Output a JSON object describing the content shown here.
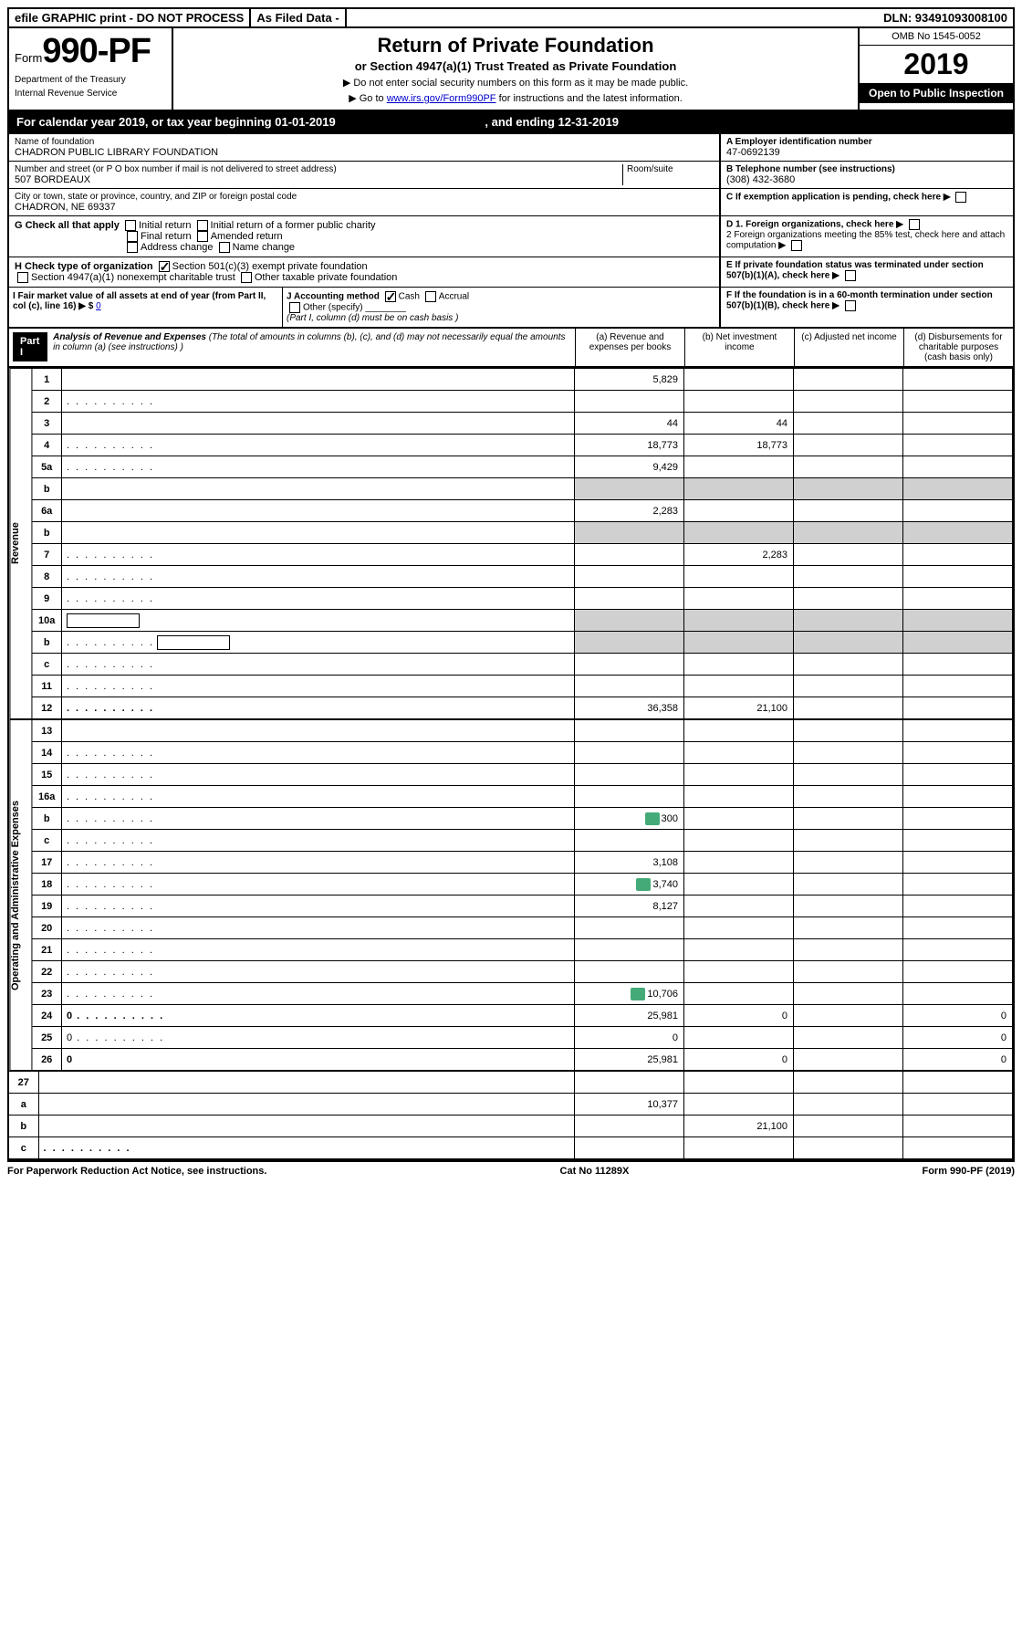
{
  "topbar": {
    "efile": "efile GRAPHIC print - DO NOT PROCESS",
    "asfiled": "As Filed Data -",
    "dln": "DLN: 93491093008100"
  },
  "formbox": {
    "form_label": "Form",
    "form_num": "990-PF",
    "dept1": "Department of the Treasury",
    "dept2": "Internal Revenue Service"
  },
  "titlebox": {
    "title": "Return of Private Foundation",
    "sub": "or Section 4947(a)(1) Trust Treated as Private Foundation",
    "note1": "▶ Do not enter social security numbers on this form as it may be made public.",
    "note2_pre": "▶ Go to ",
    "note2_link": "www.irs.gov/Form990PF",
    "note2_post": " for instructions and the latest information."
  },
  "yearbox": {
    "omb": "OMB No 1545-0052",
    "year": "2019",
    "open": "Open to Public Inspection"
  },
  "calyear": {
    "text_pre": "For calendar year 2019, or tax year beginning ",
    "begin": "01-01-2019",
    "text_mid": ", and ending ",
    "end": "12-31-2019"
  },
  "name": {
    "label": "Name of foundation",
    "value": "CHADRON PUBLIC LIBRARY FOUNDATION"
  },
  "ein": {
    "label": "A Employer identification number",
    "value": "47-0692139"
  },
  "addr": {
    "label": "Number and street (or P O  box number if mail is not delivered to street address)",
    "room": "Room/suite",
    "value": "507 BORDEAUX"
  },
  "tel": {
    "label": "B Telephone number (see instructions)",
    "value": "(308) 432-3680"
  },
  "city": {
    "label": "City or town, state or province, country, and ZIP or foreign postal code",
    "value": "CHADRON, NE  69337"
  },
  "c_label": "C If exemption application is pending, check here",
  "g": {
    "label": "G Check all that apply",
    "opts": [
      "Initial return",
      "Initial return of a former public charity",
      "Final return",
      "Amended return",
      "Address change",
      "Name change"
    ]
  },
  "d": {
    "d1": "D 1. Foreign organizations, check here",
    "d2": "2 Foreign organizations meeting the 85% test, check here and attach computation"
  },
  "h": {
    "label": "H Check type of organization",
    "opt1": "Section 501(c)(3) exempt private foundation",
    "opt2": "Section 4947(a)(1) nonexempt charitable trust",
    "opt3": "Other taxable private foundation"
  },
  "e_label": "E If private foundation status was terminated under section 507(b)(1)(A), check here",
  "i": {
    "label": "I Fair market value of all assets at end of year (from Part II, col  (c), line 16)",
    "arrow": "▶ $",
    "value": "0"
  },
  "j": {
    "label": "J Accounting method",
    "cash": "Cash",
    "accrual": "Accrual",
    "other": "Other (specify)",
    "note": "(Part I, column (d) must be on cash basis )"
  },
  "f_label": "F If the foundation is in a 60-month termination under section 507(b)(1)(B), check here",
  "part1": {
    "header": "Part I",
    "title": "Analysis of Revenue and Expenses",
    "note": "(The total of amounts in columns (b), (c), and (d) may not necessarily equal the amounts in column (a) (see instructions) )",
    "col_a": "(a) Revenue and expenses per books",
    "col_b": "(b) Net investment income",
    "col_c": "(c) Adjusted net income",
    "col_d": "(d) Disbursements for charitable purposes (cash basis only)"
  },
  "revenue_label": "Revenue",
  "expenses_label": "Operating and Administrative Expenses",
  "rows": [
    {
      "n": "1",
      "d": "",
      "a": "5,829",
      "b": "",
      "c": ""
    },
    {
      "n": "2",
      "d": "",
      "a": "",
      "b": "",
      "c": "",
      "dots": true
    },
    {
      "n": "3",
      "d": "",
      "a": "44",
      "b": "44",
      "c": ""
    },
    {
      "n": "4",
      "d": "",
      "a": "18,773",
      "b": "18,773",
      "c": "",
      "dots": true
    },
    {
      "n": "5a",
      "d": "",
      "a": "9,429",
      "b": "",
      "c": "",
      "dots": true
    },
    {
      "n": "b",
      "d": "",
      "a": "",
      "b": "",
      "c": "",
      "shade": true
    },
    {
      "n": "6a",
      "d": "",
      "a": "2,283",
      "b": "",
      "c": ""
    },
    {
      "n": "b",
      "d": "",
      "a": "",
      "b": "",
      "c": "",
      "shade": true
    },
    {
      "n": "7",
      "d": "",
      "a": "",
      "b": "2,283",
      "c": "",
      "dots": true
    },
    {
      "n": "8",
      "d": "",
      "a": "",
      "b": "",
      "c": "",
      "dots": true
    },
    {
      "n": "9",
      "d": "",
      "a": "",
      "b": "",
      "c": "",
      "dots": true
    },
    {
      "n": "10a",
      "d": "",
      "a": "",
      "b": "",
      "c": "",
      "box": true,
      "shade": true
    },
    {
      "n": "b",
      "d": "",
      "a": "",
      "b": "",
      "c": "",
      "box": true,
      "shade": true,
      "dots": true
    },
    {
      "n": "c",
      "d": "",
      "a": "",
      "b": "",
      "c": "",
      "dots": true
    },
    {
      "n": "11",
      "d": "",
      "a": "",
      "b": "",
      "c": "",
      "dots": true
    },
    {
      "n": "12",
      "d": "",
      "a": "36,358",
      "b": "21,100",
      "c": "",
      "bold": true,
      "dots": true
    }
  ],
  "exp_rows": [
    {
      "n": "13",
      "d": "",
      "a": "",
      "b": "",
      "c": ""
    },
    {
      "n": "14",
      "d": "",
      "a": "",
      "b": "",
      "c": "",
      "dots": true
    },
    {
      "n": "15",
      "d": "",
      "a": "",
      "b": "",
      "c": "",
      "dots": true
    },
    {
      "n": "16a",
      "d": "",
      "a": "",
      "b": "",
      "c": "",
      "dots": true
    },
    {
      "n": "b",
      "d": "",
      "a": "300",
      "b": "",
      "c": "",
      "icon": true,
      "dots": true
    },
    {
      "n": "c",
      "d": "",
      "a": "",
      "b": "",
      "c": "",
      "dots": true
    },
    {
      "n": "17",
      "d": "",
      "a": "3,108",
      "b": "",
      "c": "",
      "dots": true
    },
    {
      "n": "18",
      "d": "",
      "a": "3,740",
      "b": "",
      "c": "",
      "icon": true,
      "dots": true
    },
    {
      "n": "19",
      "d": "",
      "a": "8,127",
      "b": "",
      "c": "",
      "dots": true
    },
    {
      "n": "20",
      "d": "",
      "a": "",
      "b": "",
      "c": "",
      "dots": true
    },
    {
      "n": "21",
      "d": "",
      "a": "",
      "b": "",
      "c": "",
      "dots": true
    },
    {
      "n": "22",
      "d": "",
      "a": "",
      "b": "",
      "c": "",
      "dots": true
    },
    {
      "n": "23",
      "d": "",
      "a": "10,706",
      "b": "",
      "c": "",
      "icon": true,
      "dots": true
    },
    {
      "n": "24",
      "d": "0",
      "a": "25,981",
      "b": "0",
      "c": "",
      "bold": true,
      "dots": true
    },
    {
      "n": "25",
      "d": "0",
      "a": "0",
      "b": "",
      "c": "",
      "dots": true
    },
    {
      "n": "26",
      "d": "0",
      "a": "25,981",
      "b": "0",
      "c": "",
      "bold": true
    }
  ],
  "sum_rows": [
    {
      "n": "27",
      "d": "",
      "a": "",
      "b": "",
      "c": ""
    },
    {
      "n": "a",
      "d": "",
      "a": "10,377",
      "b": "",
      "c": "",
      "bold": true
    },
    {
      "n": "b",
      "d": "",
      "a": "",
      "b": "21,100",
      "c": "",
      "bold": true
    },
    {
      "n": "c",
      "d": "",
      "a": "",
      "b": "",
      "c": "",
      "bold": true,
      "dots": true
    }
  ],
  "footer": {
    "left": "For Paperwork Reduction Act Notice, see instructions.",
    "mid": "Cat  No  11289X",
    "right": "Form 990-PF (2019)"
  }
}
